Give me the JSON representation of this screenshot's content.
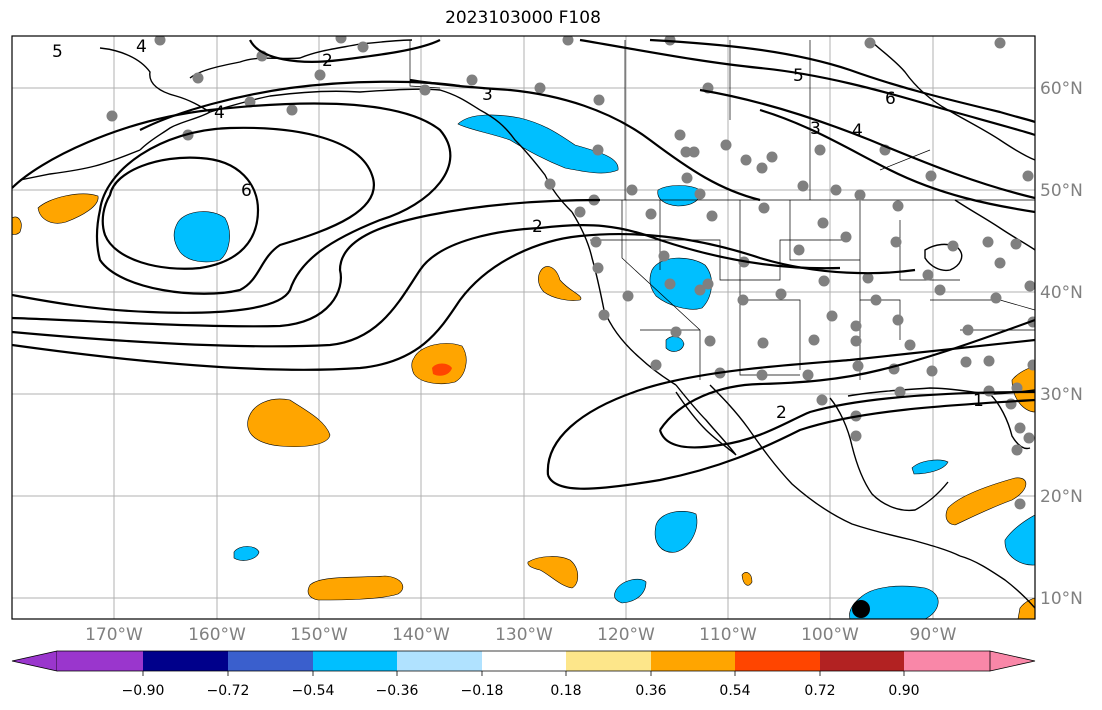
{
  "title": "2023103000 F108",
  "colors": {
    "background": "#ffffff",
    "ocean": "#ffffff",
    "gridline": "#b0b0b0",
    "coast": "#000000",
    "station_dot": "#808080",
    "marker": "#000000"
  },
  "lon_labels": [
    "170°W",
    "160°W",
    "150°W",
    "140°W",
    "130°W",
    "120°W",
    "110°W",
    "100°W",
    "90°W"
  ],
  "lat_labels": [
    "60°N",
    "50°N",
    "40°N",
    "30°N",
    "20°N",
    "10°N"
  ],
  "colorbar": {
    "ticks": [
      "−0.90",
      "−0.72",
      "−0.54",
      "−0.36",
      "−0.18",
      "0.18",
      "0.36",
      "0.54",
      "0.72",
      "0.90"
    ],
    "colors": [
      "#9a36cd",
      "#00008b",
      "#3a5fcd",
      "#00bfff",
      "#b0e2ff",
      "#ffffff",
      "#fde68a",
      "#ffa500",
      "#ff4500",
      "#b22222",
      "#f987a8"
    ]
  },
  "contour_labels": [
    "5",
    "4",
    "2",
    "3",
    "4",
    "6",
    "2",
    "5",
    "6",
    "3",
    "4",
    "2",
    "1"
  ]
}
